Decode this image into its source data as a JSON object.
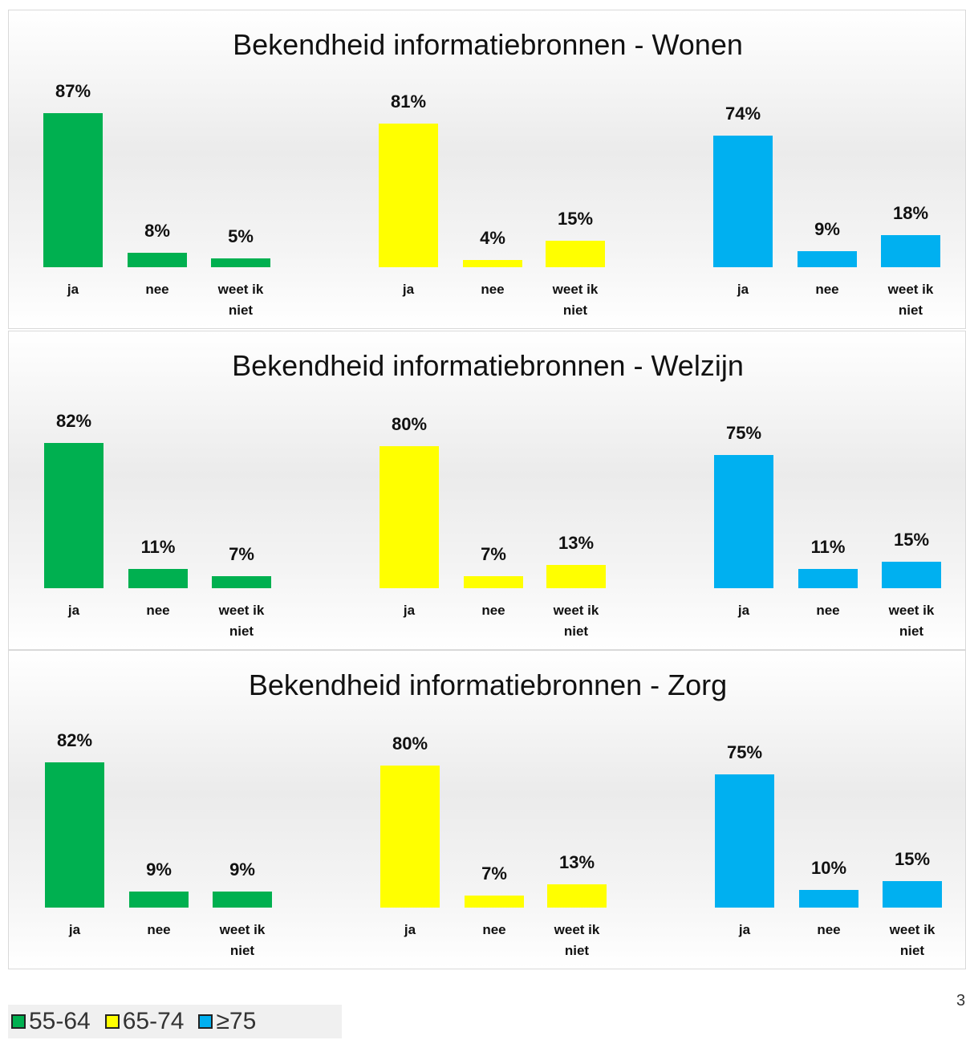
{
  "chart_data": [
    {
      "type": "bar",
      "title": "Bekendheid informatiebronnen - Wonen",
      "categories": [
        "ja",
        "nee",
        "weet ik niet"
      ],
      "series": [
        {
          "values": [
            87,
            8,
            5
          ],
          "value_labels": [
            "87%",
            "8%",
            "5%"
          ]
        },
        {
          "values": [
            81,
            4,
            15
          ],
          "value_labels": [
            "81%",
            "4%",
            "15%"
          ]
        },
        {
          "values": [
            74,
            9,
            18
          ],
          "value_labels": [
            "74%",
            "9%",
            "18%"
          ]
        }
      ]
    },
    {
      "type": "bar",
      "title": "Bekendheid informatiebronnen - Welzijn",
      "categories": [
        "ja",
        "nee",
        "weet ik niet"
      ],
      "series": [
        {
          "values": [
            82,
            11,
            7
          ],
          "value_labels": [
            "82%",
            "11%",
            "7%"
          ]
        },
        {
          "values": [
            80,
            7,
            13
          ],
          "value_labels": [
            "80%",
            "7%",
            "13%"
          ]
        },
        {
          "values": [
            75,
            11,
            15
          ],
          "value_labels": [
            "75%",
            "11%",
            "15%"
          ]
        }
      ]
    },
    {
      "type": "bar",
      "title": "Bekendheid informatiebronnen - Zorg",
      "categories": [
        "ja",
        "nee",
        "weet ik niet"
      ],
      "series": [
        {
          "values": [
            82,
            9,
            9
          ],
          "value_labels": [
            "82%",
            "9%",
            "9%"
          ]
        },
        {
          "values": [
            80,
            7,
            13
          ],
          "value_labels": [
            "80%",
            "7%",
            "13%"
          ]
        },
        {
          "values": [
            75,
            10,
            15
          ],
          "value_labels": [
            "75%",
            "10%",
            "15%"
          ]
        }
      ]
    }
  ],
  "legend": [
    {
      "name": "55-64",
      "color": "#00b050"
    },
    {
      "name": "65-74",
      "color": "#ffff00"
    },
    {
      "name": "≥75",
      "color": "#00b0f0"
    }
  ],
  "page_number": "3"
}
